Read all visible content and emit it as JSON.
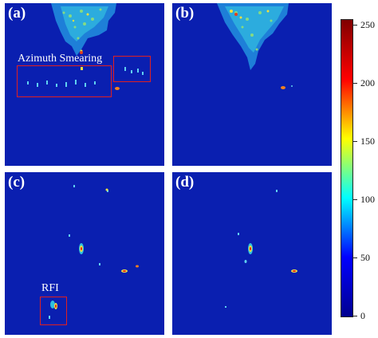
{
  "panels": {
    "a": {
      "label": "(a)"
    },
    "b": {
      "label": "(b)"
    },
    "c": {
      "label": "(c)"
    },
    "d": {
      "label": "(d)"
    }
  },
  "annotations": {
    "azimuth_smearing": "Azimuth Smearing",
    "rfi": "RFI"
  },
  "colorbar": {
    "ticks": [
      "250",
      "200",
      "150",
      "100",
      "50",
      "0"
    ],
    "colors": [
      "#00008f",
      "#0000ff",
      "#00ffff",
      "#ffff00",
      "#ff0000",
      "#800000"
    ]
  },
  "colors": {
    "background_sea": "#0a1fb0",
    "annotation_box": "#e02020"
  }
}
